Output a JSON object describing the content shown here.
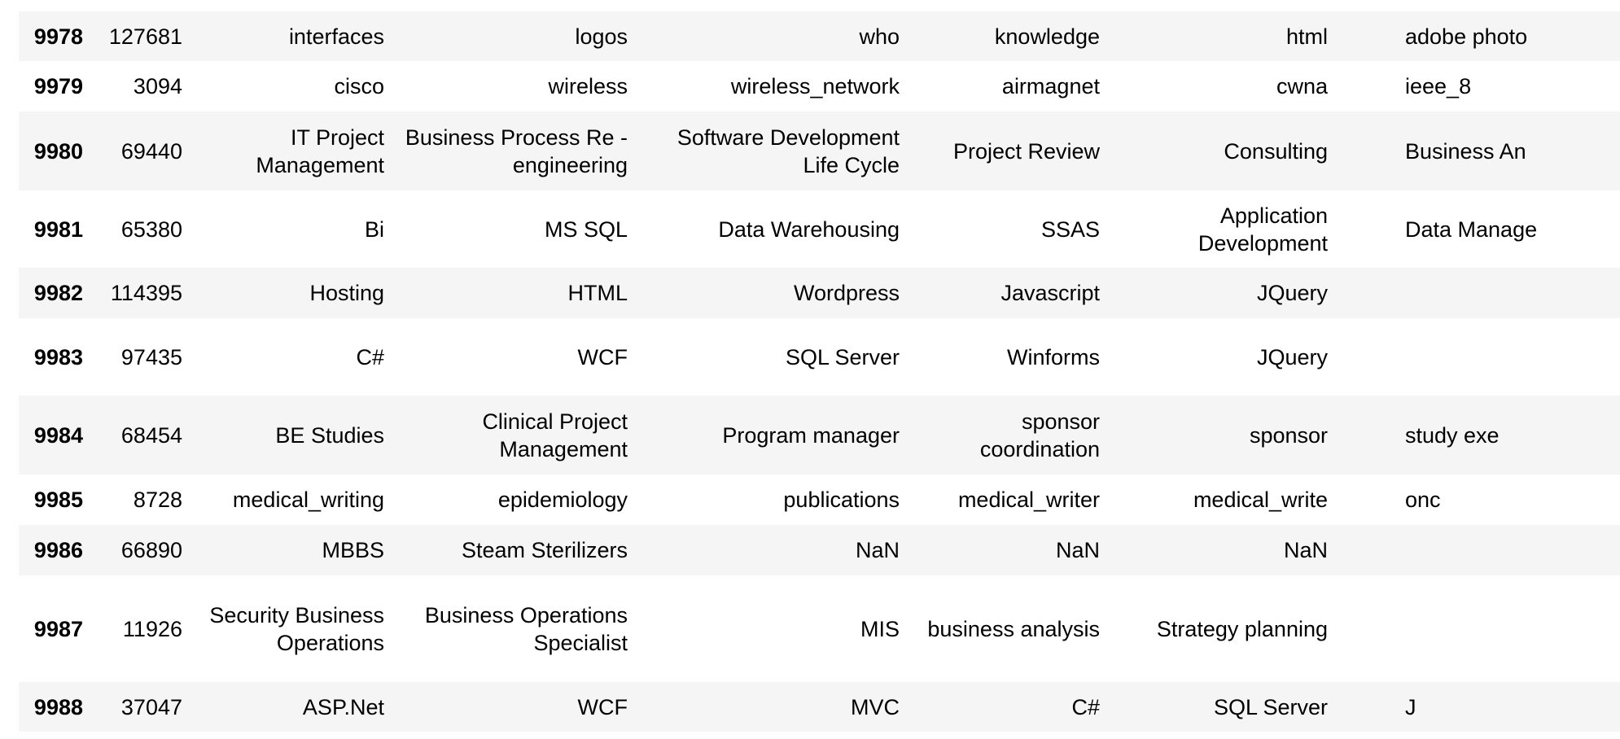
{
  "table": {
    "rows": [
      {
        "index": "9978",
        "id": "127681",
        "cells": [
          "interfaces",
          "logos",
          "who",
          "knowledge",
          "html",
          "adobe photo"
        ]
      },
      {
        "index": "9979",
        "id": "3094",
        "cells": [
          "cisco",
          "wireless",
          "wireless_network",
          "airmagnet",
          "cwna",
          "ieee_8"
        ]
      },
      {
        "index": "9980",
        "id": "69440",
        "cells": [
          "IT Project Management",
          "Business Process Re - engineering",
          "Software Development Life Cycle",
          "Project Review",
          "Consulting",
          "Business An"
        ]
      },
      {
        "index": "9981",
        "id": "65380",
        "cells": [
          "Bi",
          "MS SQL",
          "Data Warehousing",
          "SSAS",
          "Application Development",
          "Data Manage"
        ]
      },
      {
        "index": "9982",
        "id": "114395",
        "cells": [
          "Hosting",
          "HTML",
          "Wordpress",
          "Javascript",
          "JQuery"
        ]
      },
      {
        "index": "9983",
        "id": "97435",
        "cells": [
          "C#",
          "WCF",
          "SQL Server",
          "Winforms",
          "JQuery"
        ]
      },
      {
        "index": "9984",
        "id": "68454",
        "cells": [
          "BE Studies",
          "Clinical Project Management",
          "Program manager",
          "sponsor coordination",
          "sponsor",
          "study exe"
        ]
      },
      {
        "index": "9985",
        "id": "8728",
        "cells": [
          "medical_writing",
          "epidemiology",
          "publications",
          "medical_writer",
          "medical_write",
          "onc"
        ]
      },
      {
        "index": "9986",
        "id": "66890",
        "cells": [
          "MBBS",
          "Steam Sterilizers",
          "NaN",
          "NaN",
          "NaN"
        ]
      },
      {
        "index": "9987",
        "id": "11926",
        "cells": [
          "Security Business Operations",
          "Business Operations Specialist",
          "MIS",
          "business analysis",
          "Strategy planning"
        ]
      },
      {
        "index": "9988",
        "id": "37047",
        "cells": [
          "ASP.Net",
          "WCF",
          "MVC",
          "C#",
          "SQL Server",
          "J"
        ]
      }
    ]
  }
}
